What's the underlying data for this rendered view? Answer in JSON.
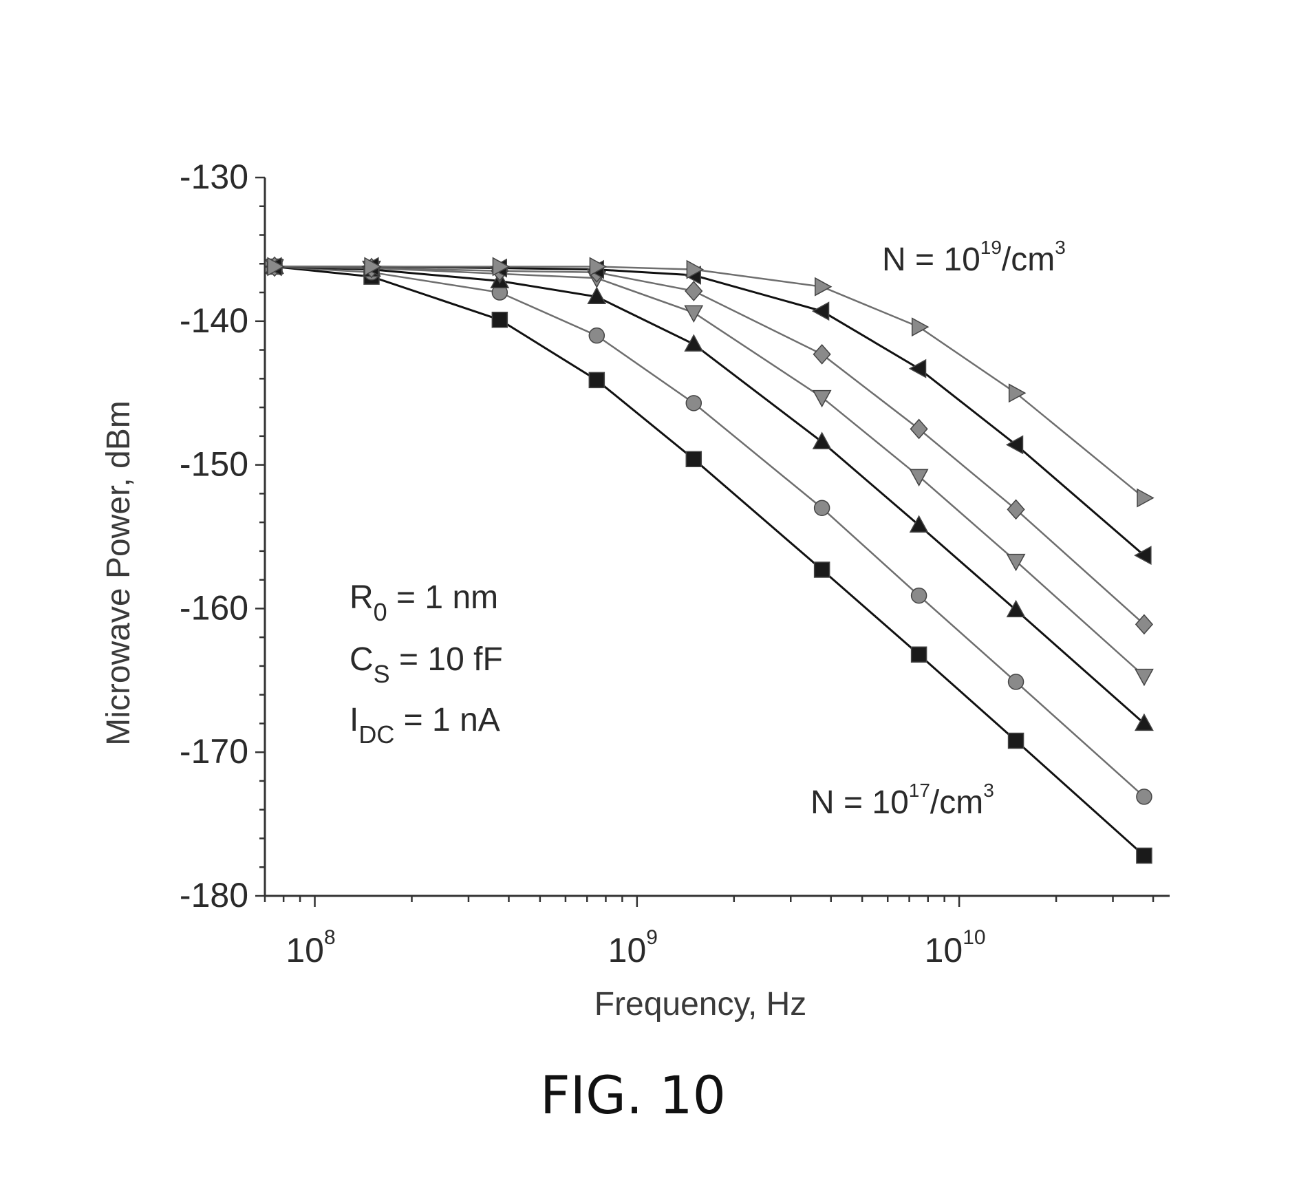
{
  "figure_caption": "FIG. 10",
  "chart_data": {
    "type": "line",
    "title": "",
    "xlabel": "Frequency, Hz",
    "ylabel": "Microwave Power, dBm",
    "xscale": "log",
    "xlim": [
      70000000,
      45000000000
    ],
    "ylim": [
      -180,
      -130
    ],
    "yticks": [
      -180,
      -170,
      -160,
      -150,
      -140,
      -130
    ],
    "ytick_labels": [
      "-180",
      "-170",
      "-160",
      "-150",
      "-140",
      "-130"
    ],
    "xticks": [
      100000000,
      1000000000,
      10000000000
    ],
    "xtick_labels": [
      {
        "base": "10",
        "exp": "8"
      },
      {
        "base": "10",
        "exp": "9"
      },
      {
        "base": "10",
        "exp": "10"
      }
    ],
    "x": [
      75000000,
      150000000,
      375000000,
      750000000,
      1500000000,
      3750000000,
      7500000000,
      15000000000,
      37500000000
    ],
    "series": [
      {
        "marker": "square",
        "values": [
          -136.2,
          -136.9,
          -139.9,
          -144.1,
          -149.6,
          -157.3,
          -163.2,
          -169.2,
          -177.2
        ]
      },
      {
        "marker": "circle",
        "values": [
          -136.2,
          -136.6,
          -138.0,
          -141.0,
          -145.7,
          -153.0,
          -159.1,
          -165.1,
          -173.1
        ]
      },
      {
        "marker": "triangle-up",
        "values": [
          -136.2,
          -136.4,
          -137.2,
          -138.3,
          -141.6,
          -148.4,
          -154.2,
          -160.1,
          -168.0
        ]
      },
      {
        "marker": "triangle-down",
        "values": [
          -136.2,
          -136.3,
          -136.7,
          -137.0,
          -139.4,
          -145.3,
          -150.8,
          -156.7,
          -164.7
        ]
      },
      {
        "marker": "diamond",
        "values": [
          -136.2,
          -136.3,
          -136.5,
          -136.6,
          -137.9,
          -142.3,
          -147.5,
          -153.1,
          -161.1
        ]
      },
      {
        "marker": "triangle-left",
        "values": [
          -136.2,
          -136.2,
          -136.3,
          -136.4,
          -136.8,
          -139.3,
          -143.3,
          -148.6,
          -156.3
        ]
      },
      {
        "marker": "triangle-right",
        "values": [
          -136.2,
          -136.2,
          -136.2,
          -136.2,
          -136.4,
          -137.6,
          -140.4,
          -145.0,
          -152.3
        ]
      }
    ],
    "annotations": {
      "top_label": {
        "prefix": "N = 10",
        "exp": "19",
        "unit": "/cm",
        "unit_exp": "3"
      },
      "bottom_label": {
        "prefix": "N = 10",
        "exp": "17",
        "unit": "/cm",
        "unit_exp": "3"
      },
      "params": [
        {
          "main": "R",
          "sub": "0",
          "rest": " = 1 nm"
        },
        {
          "main": "C",
          "sub": "S",
          "rest": " = 10 fF"
        },
        {
          "main": "I",
          "sub": "DC",
          "rest": " = 1 nA"
        }
      ]
    },
    "colors": {
      "dark_series": "#111111",
      "light_series": "#6e6e6e",
      "marker_dark": "#1a1a1a",
      "marker_light": "#8a8a8a",
      "axis": "#333333"
    },
    "grid": false,
    "legend": "none"
  }
}
